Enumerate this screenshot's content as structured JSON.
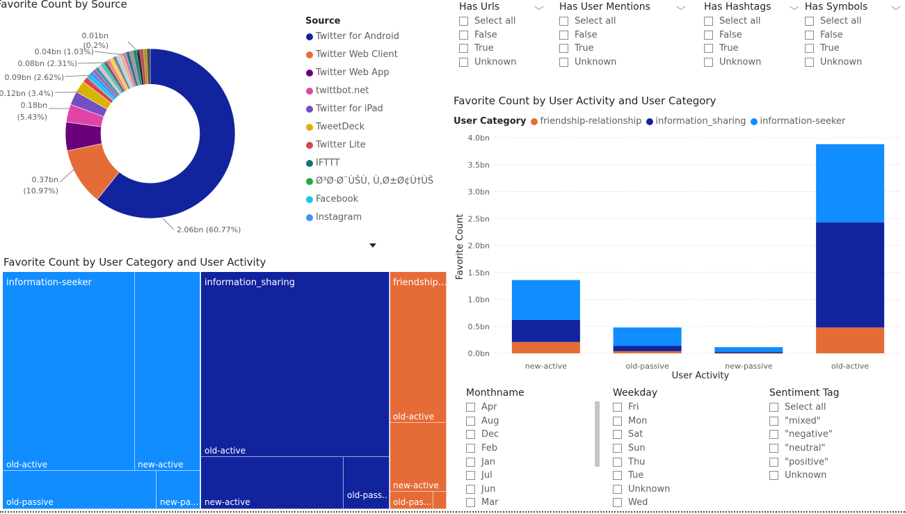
{
  "donut": {
    "title": "Favorite Count by Source",
    "legend_title": "Source",
    "legend": [
      {
        "label": "Twitter for Android",
        "color": "#12239e"
      },
      {
        "label": "Twitter Web Client",
        "color": "#e66c37"
      },
      {
        "label": "Twitter Web App",
        "color": "#6b007b"
      },
      {
        "label": "twittbot.net",
        "color": "#e044a7"
      },
      {
        "label": "Twitter for iPad",
        "color": "#744ec2"
      },
      {
        "label": "TweetDeck",
        "color": "#d9b300"
      },
      {
        "label": "Twitter Lite",
        "color": "#d64550"
      },
      {
        "label": "IFTTT",
        "color": "#197278"
      },
      {
        "label": "Ø³Ø·Ø¨ÙŠÙ‚ Ù‚Ø±Ø¢Ù†ÙŠ",
        "color": "#1aab40"
      },
      {
        "label": "Facebook",
        "color": "#15c6f4"
      },
      {
        "label": "Instagram",
        "color": "#4092ff"
      }
    ],
    "more_icon": "chevron-down-icon",
    "labels": [
      {
        "line1": "0.01bn",
        "line2": "(0.2%)"
      },
      {
        "line1": "0.04bn (1.03%)",
        "line2": ""
      },
      {
        "line1": "0.08bn (2.31%)",
        "line2": ""
      },
      {
        "line1": "0.09bn (2.62%)",
        "line2": ""
      },
      {
        "line1": "0.12bn (3.4%)",
        "line2": ""
      },
      {
        "line1": "0.18bn",
        "line2": "(5.43%)"
      },
      {
        "line1": "0.37bn",
        "line2": "(10.97%)"
      },
      {
        "line1": "2.06bn (60.77%)",
        "line2": ""
      }
    ]
  },
  "chart_data": [
    {
      "type": "pie",
      "title": "Favorite Count by Source",
      "legend_title": "Source",
      "slices": [
        {
          "name": "Twitter for Android",
          "value": 2.06,
          "percent": 60.77
        },
        {
          "name": "Twitter Web Client",
          "value": 0.37,
          "percent": 10.97
        },
        {
          "name": "Twitter Web App",
          "value": 0.18,
          "percent": 5.43
        },
        {
          "name": "twittbot.net",
          "value": 0.12,
          "percent": 3.4
        },
        {
          "name": "Twitter for iPad",
          "value": 0.09,
          "percent": 2.62
        },
        {
          "name": "TweetDeck",
          "value": 0.08,
          "percent": 2.31
        },
        {
          "name": "Twitter Lite",
          "value": 0.04,
          "percent": 1.03
        },
        {
          "name": "IFTTT",
          "value": 0.01,
          "percent": 0.2
        }
      ],
      "legend_placement": "right"
    },
    {
      "type": "bar",
      "stacked": true,
      "title": "Favorite Count by User Activity and User Category",
      "legend_title": "User Category",
      "xlabel": "User Activity",
      "ylabel": "Favorite Count",
      "categories": [
        "new-active",
        "old-passive",
        "new-passive",
        "old-active"
      ],
      "series": [
        {
          "name": "friendship-relationship",
          "color": "#e66c37",
          "values": [
            0.21,
            0.04,
            0.005,
            0.48
          ]
        },
        {
          "name": "information_sharing",
          "color": "#12239e",
          "values": [
            0.41,
            0.1,
            0.02,
            1.95
          ]
        },
        {
          "name": "information-seeker",
          "color": "#118dff",
          "values": [
            0.74,
            0.34,
            0.09,
            1.45
          ]
        }
      ],
      "yticks": [
        "0.0bn",
        "0.5bn",
        "1.0bn",
        "1.5bn",
        "2.0bn",
        "2.5bn",
        "3.0bn",
        "3.5bn",
        "4.0bn"
      ],
      "ylim": [
        0,
        4.0
      ],
      "grid": true,
      "legend_placement": "top-left"
    },
    {
      "type": "treemap",
      "title": "Favorite Count by User Category and User Activity",
      "groups": [
        {
          "name": "information-seeker",
          "color": "#118dff",
          "cells": [
            "old-active",
            "new-active",
            "old-passive",
            "new-pa..."
          ]
        },
        {
          "name": "information_sharing",
          "color": "#12239e",
          "cells": [
            "old-active",
            "new-active",
            "old-pass..."
          ]
        },
        {
          "name": "friendship...",
          "color": "#e66c37",
          "cells": [
            "old-active",
            "new-active",
            "old-pas..."
          ]
        }
      ]
    }
  ],
  "bar": {
    "title": "Favorite Count by User Activity and User Category",
    "legend_title": "User Category",
    "legend": [
      {
        "label": "friendship-relationship",
        "color": "#e66c37"
      },
      {
        "label": "information_sharing",
        "color": "#12239e"
      },
      {
        "label": "information-seeker",
        "color": "#118dff"
      }
    ],
    "xlabel": "User Activity",
    "ylabel": "Favorite Count"
  },
  "treemap": {
    "title": "Favorite Count by User Category and User Activity",
    "group1": "information-seeker",
    "group2": "information_sharing",
    "group3": "friendship...",
    "c1": "old-active",
    "c2": "new-active",
    "c3": "old-passive",
    "c4": "new-pa...",
    "c5": "old-active",
    "c6": "new-active",
    "c7": "old-pass...",
    "c8": "old-active",
    "c9": "new-active",
    "c10": "old-pas..."
  },
  "slicers": [
    {
      "title": "Has Urls",
      "items": [
        "Select all",
        "False",
        "True",
        "Unknown"
      ]
    },
    {
      "title": "Has User Mentions",
      "items": [
        "Select all",
        "False",
        "True",
        "Unknown"
      ]
    },
    {
      "title": "Has Hashtags",
      "items": [
        "Select all",
        "False",
        "True",
        "Unknown"
      ]
    },
    {
      "title": "Has Symbols",
      "items": [
        "Select all",
        "False",
        "True",
        "Unknown"
      ]
    }
  ],
  "monthname": {
    "title": "Monthname",
    "items": [
      "Apr",
      "Aug",
      "Dec",
      "Feb",
      "Jan",
      "Jul",
      "Jun",
      "Mar"
    ]
  },
  "weekday": {
    "title": "Weekday",
    "items": [
      "Fri",
      "Mon",
      "Sat",
      "Sun",
      "Thu",
      "Tue",
      "Unknown",
      "Wed"
    ]
  },
  "sentiment": {
    "title": "Sentiment Tag",
    "items": [
      "Select all",
      "\"mixed\"",
      "\"negative\"",
      "\"neutral\"",
      "\"positive\"",
      "Unknown"
    ]
  }
}
